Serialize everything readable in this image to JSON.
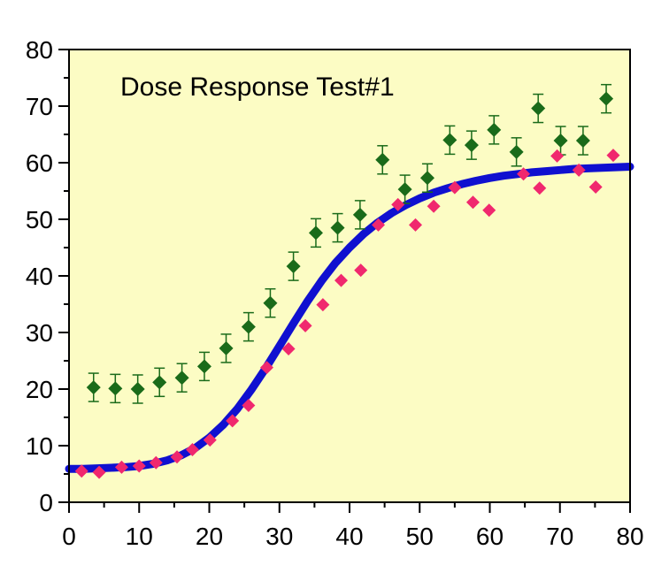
{
  "chart_data": {
    "type": "scatter",
    "title": "Dose Response Test#1",
    "xlabel": "",
    "ylabel": "",
    "xlim": [
      0,
      80
    ],
    "ylim": [
      0,
      80
    ],
    "x_ticks": [
      0,
      10,
      20,
      30,
      40,
      50,
      60,
      70,
      80
    ],
    "y_ticks": [
      0,
      10,
      20,
      30,
      40,
      50,
      60,
      70,
      80
    ],
    "x_tick_labels": [
      "0",
      "10",
      "20",
      "30",
      "40",
      "50",
      "60",
      "70",
      "80"
    ],
    "y_tick_labels": [
      "0",
      "10",
      "20",
      "30",
      "40",
      "50",
      "60",
      "70",
      "80"
    ],
    "grid": false,
    "background_color": "#fcfcc4",
    "series": [
      {
        "kind": "points-with-error",
        "color": "#1a6b1a",
        "marker": "diamond",
        "points": [
          {
            "x": 3.5,
            "y": 20.3,
            "err": 2.5
          },
          {
            "x": 6.6,
            "y": 20.1,
            "err": 2.5
          },
          {
            "x": 9.8,
            "y": 20.0,
            "err": 2.5
          },
          {
            "x": 12.9,
            "y": 21.2,
            "err": 2.5
          },
          {
            "x": 16.1,
            "y": 22.0,
            "err": 2.5
          },
          {
            "x": 19.3,
            "y": 24.0,
            "err": 2.5
          },
          {
            "x": 22.4,
            "y": 27.2,
            "err": 2.5
          },
          {
            "x": 25.6,
            "y": 31.0,
            "err": 2.5
          },
          {
            "x": 28.7,
            "y": 35.2,
            "err": 2.5
          },
          {
            "x": 32.0,
            "y": 41.7,
            "err": 2.5
          },
          {
            "x": 35.2,
            "y": 47.6,
            "err": 2.5
          },
          {
            "x": 38.3,
            "y": 48.5,
            "err": 2.5
          },
          {
            "x": 41.5,
            "y": 50.8,
            "err": 2.5
          },
          {
            "x": 44.7,
            "y": 60.5,
            "err": 2.5
          },
          {
            "x": 47.9,
            "y": 55.3,
            "err": 2.5
          },
          {
            "x": 51.1,
            "y": 57.3,
            "err": 2.5
          },
          {
            "x": 54.3,
            "y": 64.0,
            "err": 2.5
          },
          {
            "x": 57.4,
            "y": 63.1,
            "err": 2.5
          },
          {
            "x": 60.6,
            "y": 65.8,
            "err": 2.5
          },
          {
            "x": 63.8,
            "y": 61.9,
            "err": 2.5
          },
          {
            "x": 66.9,
            "y": 69.6,
            "err": 2.5
          },
          {
            "x": 70.1,
            "y": 63.9,
            "err": 2.5
          },
          {
            "x": 73.3,
            "y": 63.9,
            "err": 2.5
          },
          {
            "x": 76.6,
            "y": 71.3,
            "err": 2.5
          }
        ]
      },
      {
        "kind": "points",
        "color": "#f0286e",
        "marker": "diamond",
        "points": [
          {
            "x": 1.8,
            "y": 5.5
          },
          {
            "x": 4.3,
            "y": 5.3
          },
          {
            "x": 7.5,
            "y": 6.2
          },
          {
            "x": 10.0,
            "y": 6.4
          },
          {
            "x": 12.4,
            "y": 7.0
          },
          {
            "x": 15.4,
            "y": 8.0
          },
          {
            "x": 17.6,
            "y": 9.3
          },
          {
            "x": 20.1,
            "y": 11.0
          },
          {
            "x": 23.3,
            "y": 14.4
          },
          {
            "x": 25.6,
            "y": 17.1
          },
          {
            "x": 28.2,
            "y": 23.8
          },
          {
            "x": 31.3,
            "y": 27.1
          },
          {
            "x": 33.7,
            "y": 31.2
          },
          {
            "x": 36.2,
            "y": 34.9
          },
          {
            "x": 38.8,
            "y": 39.2
          },
          {
            "x": 41.6,
            "y": 41.0
          },
          {
            "x": 44.1,
            "y": 49.0
          },
          {
            "x": 46.9,
            "y": 52.6
          },
          {
            "x": 49.4,
            "y": 49.0
          },
          {
            "x": 52.0,
            "y": 52.3
          },
          {
            "x": 55.0,
            "y": 55.6
          },
          {
            "x": 57.6,
            "y": 53.0
          },
          {
            "x": 59.9,
            "y": 51.6
          },
          {
            "x": 64.8,
            "y": 58.0
          },
          {
            "x": 67.1,
            "y": 55.5
          },
          {
            "x": 69.6,
            "y": 61.2
          },
          {
            "x": 72.7,
            "y": 58.7
          },
          {
            "x": 75.1,
            "y": 55.7
          },
          {
            "x": 77.6,
            "y": 61.3
          }
        ]
      },
      {
        "kind": "curve",
        "color": "#1010d0",
        "points": [
          {
            "x": 0,
            "y": 5.9
          },
          {
            "x": 2,
            "y": 5.9
          },
          {
            "x": 4,
            "y": 6.0
          },
          {
            "x": 6,
            "y": 6.1
          },
          {
            "x": 8,
            "y": 6.2
          },
          {
            "x": 10,
            "y": 6.4
          },
          {
            "x": 12,
            "y": 6.8
          },
          {
            "x": 14,
            "y": 7.4
          },
          {
            "x": 16,
            "y": 8.3
          },
          {
            "x": 18,
            "y": 9.6
          },
          {
            "x": 20,
            "y": 11.4
          },
          {
            "x": 22,
            "y": 13.7
          },
          {
            "x": 24,
            "y": 16.5
          },
          {
            "x": 26,
            "y": 19.9
          },
          {
            "x": 28,
            "y": 23.6
          },
          {
            "x": 30,
            "y": 27.6
          },
          {
            "x": 32,
            "y": 31.6
          },
          {
            "x": 34,
            "y": 35.5
          },
          {
            "x": 36,
            "y": 39.1
          },
          {
            "x": 38,
            "y": 42.3
          },
          {
            "x": 40,
            "y": 45.0
          },
          {
            "x": 42,
            "y": 47.4
          },
          {
            "x": 44,
            "y": 49.4
          },
          {
            "x": 46,
            "y": 51.1
          },
          {
            "x": 48,
            "y": 52.5
          },
          {
            "x": 50,
            "y": 53.7
          },
          {
            "x": 52,
            "y": 54.7
          },
          {
            "x": 54,
            "y": 55.5
          },
          {
            "x": 56,
            "y": 56.2
          },
          {
            "x": 58,
            "y": 56.8
          },
          {
            "x": 60,
            "y": 57.3
          },
          {
            "x": 62,
            "y": 57.7
          },
          {
            "x": 64,
            "y": 58.0
          },
          {
            "x": 66,
            "y": 58.3
          },
          {
            "x": 68,
            "y": 58.5
          },
          {
            "x": 70,
            "y": 58.7
          },
          {
            "x": 72,
            "y": 58.9
          },
          {
            "x": 74,
            "y": 59.0
          },
          {
            "x": 76,
            "y": 59.1
          },
          {
            "x": 78,
            "y": 59.2
          },
          {
            "x": 80,
            "y": 59.3
          }
        ]
      }
    ]
  }
}
